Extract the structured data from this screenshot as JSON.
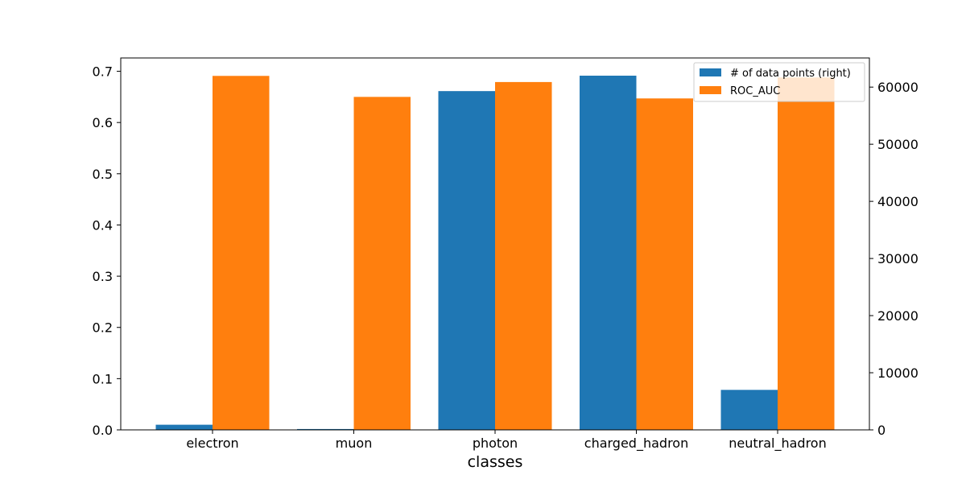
{
  "chart_data": {
    "type": "bar",
    "title": "",
    "xlabel": "classes",
    "ylabel": "",
    "y2label": "",
    "categories": [
      "electron",
      "muon",
      "photon",
      "charged_hadron",
      "neutral_hadron"
    ],
    "series": [
      {
        "name": "# of data points (right)",
        "axis": "right",
        "color": "#1f77b4",
        "values": [
          900,
          150,
          59300,
          62000,
          7000
        ]
      },
      {
        "name": "ROC_AUC",
        "axis": "left",
        "color": "#ff7f0e",
        "values": [
          0.691,
          0.65,
          0.679,
          0.647,
          0.688
        ]
      }
    ],
    "ylim": [
      0,
      0.726
    ],
    "y2lim": [
      0,
      65100
    ],
    "yticks": [
      "0.0",
      "0.1",
      "0.2",
      "0.3",
      "0.4",
      "0.5",
      "0.6",
      "0.7"
    ],
    "y2ticks": [
      "0",
      "10000",
      "20000",
      "30000",
      "40000",
      "50000",
      "60000"
    ],
    "legend_position": "top-right",
    "grid": false
  }
}
